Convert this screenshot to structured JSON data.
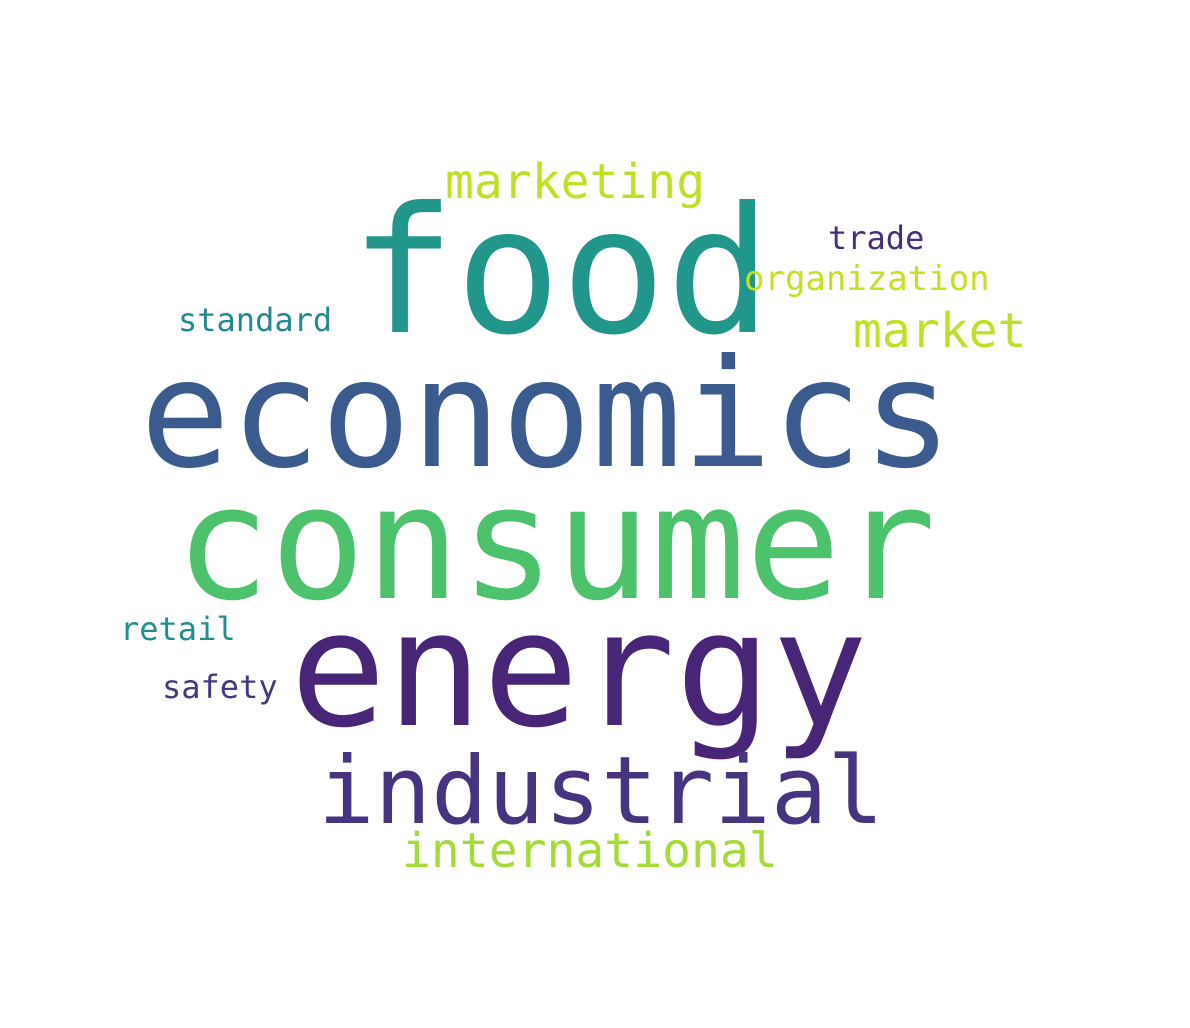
{
  "words": [
    {
      "id": "food",
      "text": "food",
      "color": "#21968b"
    },
    {
      "id": "economics",
      "text": "economics",
      "color": "#3b5b8f"
    },
    {
      "id": "consumer",
      "text": "consumer",
      "color": "#4cc26c"
    },
    {
      "id": "energy",
      "text": "energy",
      "color": "#482576"
    },
    {
      "id": "industrial",
      "text": "industrial",
      "color": "#463480"
    },
    {
      "id": "marketing",
      "text": "marketing",
      "color": "#c2df23"
    },
    {
      "id": "market",
      "text": "market",
      "color": "#c0df25"
    },
    {
      "id": "international",
      "text": "international",
      "color": "#a5db36"
    },
    {
      "id": "organization",
      "text": "organization",
      "color": "#c5e021"
    },
    {
      "id": "trade",
      "text": "trade",
      "color": "#472d7b"
    },
    {
      "id": "standard",
      "text": "standard",
      "color": "#23898e"
    },
    {
      "id": "retail",
      "text": "retail",
      "color": "#228d8d"
    },
    {
      "id": "safety",
      "text": "safety",
      "color": "#453781"
    }
  ]
}
